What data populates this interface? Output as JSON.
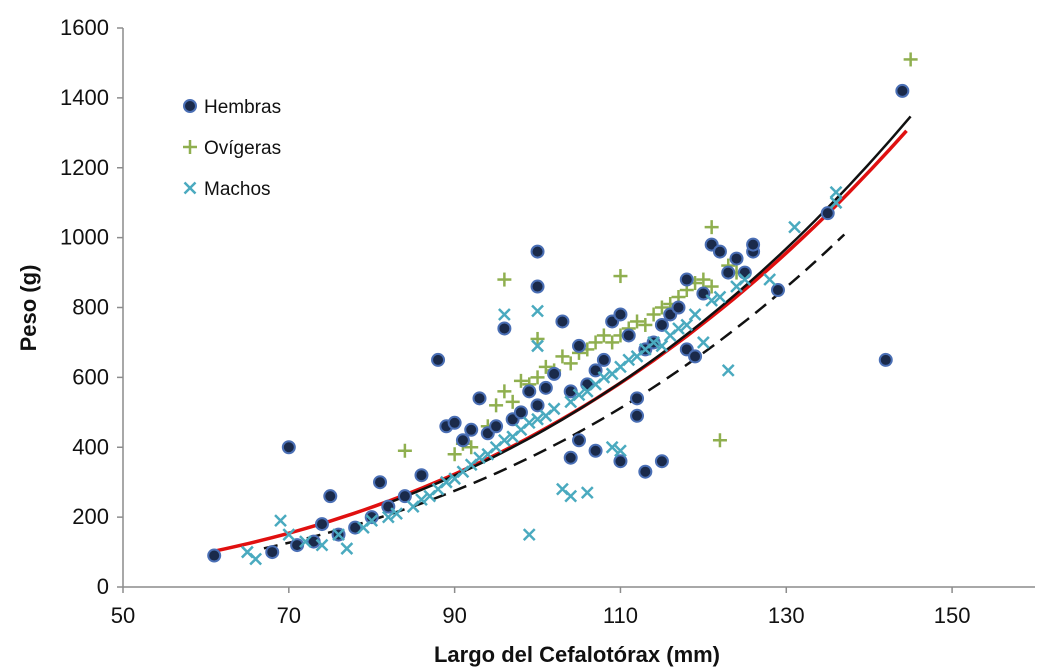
{
  "chart_data": {
    "type": "scatter",
    "title": "",
    "xlabel": "Largo del Cefalotórax (mm)",
    "ylabel": "Peso (g)",
    "xlim": [
      50,
      160
    ],
    "ylim": [
      0,
      1600
    ],
    "x_ticks": [
      50,
      70,
      90,
      110,
      130,
      150
    ],
    "y_ticks": [
      0,
      200,
      400,
      600,
      800,
      1000,
      1200,
      1400,
      1600
    ],
    "grid": false,
    "legend_position": "top-left",
    "series": [
      {
        "name": "Hembras",
        "marker": "circle",
        "color": "#1a2a4a",
        "edge_color": "#4a6fb5",
        "points": [
          [
            61,
            90
          ],
          [
            68,
            100
          ],
          [
            70,
            400
          ],
          [
            71,
            120
          ],
          [
            73,
            130
          ],
          [
            74,
            180
          ],
          [
            75,
            260
          ],
          [
            76,
            150
          ],
          [
            78,
            170
          ],
          [
            80,
            200
          ],
          [
            81,
            300
          ],
          [
            82,
            230
          ],
          [
            84,
            260
          ],
          [
            86,
            320
          ],
          [
            88,
            650
          ],
          [
            89,
            460
          ],
          [
            90,
            470
          ],
          [
            91,
            420
          ],
          [
            92,
            450
          ],
          [
            93,
            540
          ],
          [
            94,
            440
          ],
          [
            95,
            460
          ],
          [
            96,
            740
          ],
          [
            97,
            480
          ],
          [
            98,
            500
          ],
          [
            99,
            560
          ],
          [
            100,
            960
          ],
          [
            100,
            860
          ],
          [
            100,
            520
          ],
          [
            101,
            570
          ],
          [
            102,
            610
          ],
          [
            103,
            760
          ],
          [
            104,
            560
          ],
          [
            104,
            370
          ],
          [
            105,
            690
          ],
          [
            105,
            420
          ],
          [
            106,
            580
          ],
          [
            107,
            620
          ],
          [
            107,
            390
          ],
          [
            108,
            650
          ],
          [
            109,
            760
          ],
          [
            110,
            780
          ],
          [
            110,
            360
          ],
          [
            111,
            720
          ],
          [
            112,
            540
          ],
          [
            112,
            490
          ],
          [
            113,
            680
          ],
          [
            113,
            330
          ],
          [
            114,
            700
          ],
          [
            115,
            360
          ],
          [
            115,
            750
          ],
          [
            116,
            780
          ],
          [
            117,
            800
          ],
          [
            118,
            680
          ],
          [
            118,
            880
          ],
          [
            119,
            660
          ],
          [
            120,
            840
          ],
          [
            121,
            980
          ],
          [
            122,
            960
          ],
          [
            123,
            900
          ],
          [
            124,
            940
          ],
          [
            125,
            900
          ],
          [
            126,
            960
          ],
          [
            126,
            980
          ],
          [
            129,
            850
          ],
          [
            135,
            1070
          ],
          [
            142,
            650
          ],
          [
            144,
            1420
          ]
        ]
      },
      {
        "name": "Ovígeras",
        "marker": "plus",
        "color": "#8faf4f",
        "points": [
          [
            84,
            390
          ],
          [
            90,
            380
          ],
          [
            91,
            410
          ],
          [
            92,
            400
          ],
          [
            94,
            460
          ],
          [
            95,
            520
          ],
          [
            96,
            560
          ],
          [
            96,
            880
          ],
          [
            97,
            530
          ],
          [
            98,
            590
          ],
          [
            99,
            580
          ],
          [
            100,
            600
          ],
          [
            100,
            710
          ],
          [
            101,
            630
          ],
          [
            102,
            620
          ],
          [
            103,
            660
          ],
          [
            104,
            640
          ],
          [
            105,
            670
          ],
          [
            106,
            680
          ],
          [
            107,
            700
          ],
          [
            108,
            720
          ],
          [
            109,
            700
          ],
          [
            110,
            720
          ],
          [
            110,
            890
          ],
          [
            111,
            740
          ],
          [
            112,
            760
          ],
          [
            113,
            750
          ],
          [
            114,
            780
          ],
          [
            115,
            800
          ],
          [
            116,
            810
          ],
          [
            117,
            830
          ],
          [
            118,
            850
          ],
          [
            119,
            870
          ],
          [
            120,
            880
          ],
          [
            121,
            860
          ],
          [
            121,
            1030
          ],
          [
            122,
            420
          ],
          [
            123,
            920
          ],
          [
            124,
            900
          ],
          [
            145,
            1510
          ]
        ]
      },
      {
        "name": "Machos",
        "marker": "x",
        "color": "#4aaabf",
        "points": [
          [
            65,
            100
          ],
          [
            66,
            80
          ],
          [
            69,
            190
          ],
          [
            70,
            150
          ],
          [
            72,
            130
          ],
          [
            74,
            120
          ],
          [
            76,
            150
          ],
          [
            77,
            110
          ],
          [
            79,
            170
          ],
          [
            80,
            190
          ],
          [
            82,
            200
          ],
          [
            83,
            210
          ],
          [
            85,
            230
          ],
          [
            86,
            250
          ],
          [
            87,
            260
          ],
          [
            88,
            280
          ],
          [
            89,
            300
          ],
          [
            90,
            310
          ],
          [
            91,
            330
          ],
          [
            92,
            350
          ],
          [
            93,
            370
          ],
          [
            94,
            380
          ],
          [
            95,
            400
          ],
          [
            96,
            420
          ],
          [
            96,
            780
          ],
          [
            97,
            430
          ],
          [
            98,
            450
          ],
          [
            99,
            470
          ],
          [
            99,
            150
          ],
          [
            100,
            480
          ],
          [
            100,
            790
          ],
          [
            100,
            690
          ],
          [
            101,
            490
          ],
          [
            102,
            510
          ],
          [
            103,
            280
          ],
          [
            104,
            260
          ],
          [
            104,
            530
          ],
          [
            105,
            550
          ],
          [
            106,
            270
          ],
          [
            106,
            560
          ],
          [
            107,
            580
          ],
          [
            108,
            600
          ],
          [
            109,
            610
          ],
          [
            109,
            400
          ],
          [
            110,
            630
          ],
          [
            110,
            390
          ],
          [
            111,
            650
          ],
          [
            112,
            660
          ],
          [
            113,
            680
          ],
          [
            114,
            700
          ],
          [
            115,
            690
          ],
          [
            116,
            720
          ],
          [
            117,
            740
          ],
          [
            118,
            750
          ],
          [
            119,
            780
          ],
          [
            120,
            700
          ],
          [
            121,
            820
          ],
          [
            122,
            830
          ],
          [
            123,
            620
          ],
          [
            124,
            860
          ],
          [
            125,
            880
          ],
          [
            128,
            880
          ],
          [
            131,
            1030
          ],
          [
            136,
            1100
          ],
          [
            136,
            1130
          ]
        ]
      }
    ],
    "fit_lines": [
      {
        "style": "solid",
        "color": "#e01010",
        "x": [
          61,
          144.5
        ]
      },
      {
        "style": "solid",
        "color": "#111111",
        "x": [
          82,
          145
        ]
      },
      {
        "style": "dashed",
        "color": "#111111",
        "x": [
          67,
          137
        ]
      }
    ]
  }
}
